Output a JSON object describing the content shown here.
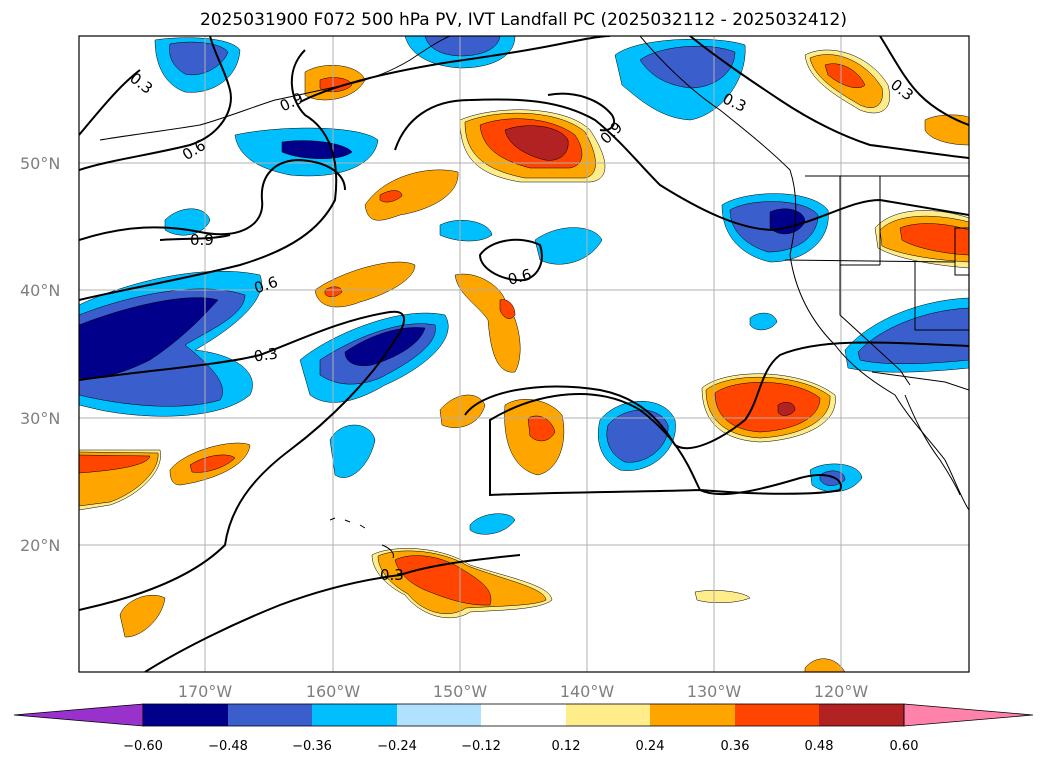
{
  "title": "2025031900 F072 500 hPa PV, IVT Landfall PC (2025032112 - 2025032412)",
  "map": {
    "projection": "cylindrical",
    "lon_range": [
      -180,
      -110
    ],
    "lat_range": [
      10,
      60
    ],
    "lat_labels": [
      "20°N",
      "30°N",
      "40°N",
      "50°N"
    ],
    "lon_labels": [
      "170°W",
      "160°W",
      "150°W",
      "140°W",
      "130°W",
      "120°W"
    ],
    "contour_labels": [
      "0.3",
      "0.6",
      "0.9",
      "0.9",
      "0.6",
      "0.9",
      "0.6",
      "0.3",
      "0.6",
      "0.3",
      "0.3",
      "0.3"
    ]
  },
  "colorbar": {
    "tick_labels": [
      "−0.60",
      "−0.48",
      "−0.36",
      "−0.24",
      "−0.12",
      "0.12",
      "0.24",
      "0.36",
      "0.48",
      "0.60"
    ],
    "colors": [
      "#9932cc",
      "#00008b",
      "#3a5fcd",
      "#00bfff",
      "#b0e2ff",
      "#ffffff",
      "#ffec8b",
      "#ffa500",
      "#ff4500",
      "#b22222",
      "#ff82ab"
    ]
  }
}
